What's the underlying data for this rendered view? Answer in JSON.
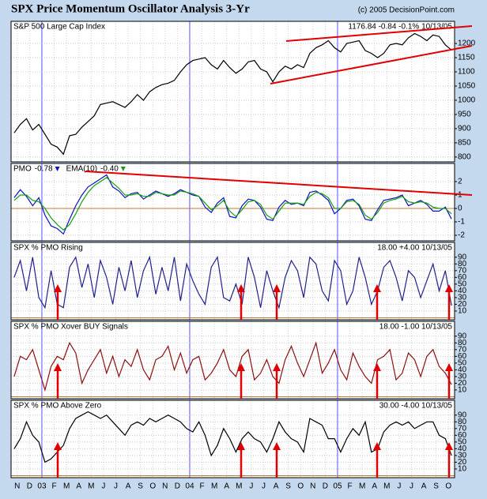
{
  "header": {
    "title": "SPX Price Momentum Oscillator Analysis 3-Yr",
    "copyright": "(c) 2005 DecisionPoint.com"
  },
  "chart_data": [
    {
      "type": "line",
      "title": "S&P 500 Large Cap Index",
      "annotation": "1176.84  -0.84  -0.1%  10/13/05",
      "ylim": [
        783,
        1278
      ],
      "yticks": [
        800,
        850,
        900,
        950,
        1000,
        1050,
        1100,
        1150,
        1200
      ],
      "grid": true,
      "series": [
        {
          "name": "SPX",
          "color": "#000000",
          "values": [
            885,
            915,
            935,
            895,
            915,
            880,
            845,
            835,
            810,
            875,
            880,
            905,
            925,
            945,
            985,
            990,
            995,
            985,
            975,
            995,
            1020,
            1000,
            1030,
            1045,
            1055,
            1060,
            1070,
            1100,
            1125,
            1140,
            1145,
            1150,
            1125,
            1110,
            1140,
            1115,
            1095,
            1110,
            1135,
            1140,
            1110,
            1100,
            1065,
            1100,
            1120,
            1110,
            1125,
            1115,
            1165,
            1185,
            1195,
            1210,
            1185,
            1170,
            1200,
            1205,
            1210,
            1175,
            1165,
            1150,
            1165,
            1195,
            1200,
            1195,
            1220,
            1235,
            1225,
            1210,
            1230,
            1225,
            1195,
            1176.84
          ]
        }
      ]
    },
    {
      "type": "line",
      "ylim": [
        -2.41,
        3.35
      ],
      "yticks": [
        2,
        1,
        0,
        -1,
        -2
      ],
      "grid": true,
      "series": [
        {
          "name": "PMO",
          "current": "-0.78",
          "color": "#1010c0",
          "values": [
            0.8,
            1.4,
            0.9,
            0.2,
            0.8,
            -0.5,
            -1.3,
            -1.5,
            -1.9,
            -0.8,
            0.2,
            1.0,
            1.6,
            1.9,
            2.2,
            2.5,
            1.6,
            1.3,
            0.8,
            1.1,
            1.2,
            0.7,
            1.0,
            1.3,
            1.1,
            0.9,
            1.1,
            1.4,
            1.2,
            1.0,
            0.9,
            0.1,
            -0.3,
            0.4,
            0.8,
            -0.6,
            -0.7,
            0.2,
            0.7,
            0.6,
            0.1,
            -0.8,
            -0.9,
            0.1,
            0.6,
            0.3,
            0.4,
            0.2,
            1.2,
            1.3,
            1.0,
            0.6,
            -0.4,
            0.0,
            0.6,
            0.7,
            0.2,
            -0.8,
            -0.9,
            -0.1,
            0.6,
            0.7,
            0.8,
            1.0,
            0.2,
            0.4,
            0.6,
            0.3,
            -0.2,
            -0.2,
            0.1,
            -0.78
          ]
        },
        {
          "name": "EMA(10)",
          "current": "-0.40",
          "color": "#10a010",
          "values": [
            0.6,
            1.0,
            1.0,
            0.6,
            0.5,
            0.0,
            -0.7,
            -1.2,
            -1.6,
            -1.2,
            -0.4,
            0.5,
            1.2,
            1.7,
            2.0,
            2.3,
            1.9,
            1.5,
            1.0,
            1.0,
            1.1,
            0.9,
            0.9,
            1.2,
            1.1,
            1.0,
            1.0,
            1.3,
            1.2,
            1.1,
            0.9,
            0.4,
            -0.1,
            0.2,
            0.6,
            -0.2,
            -0.6,
            -0.1,
            0.5,
            0.6,
            0.3,
            -0.5,
            -0.8,
            -0.2,
            0.4,
            0.4,
            0.4,
            0.3,
            0.9,
            1.2,
            1.1,
            0.8,
            0.0,
            0.0,
            0.5,
            0.6,
            0.3,
            -0.5,
            -0.8,
            -0.3,
            0.4,
            0.6,
            0.7,
            0.9,
            0.5,
            0.4,
            0.5,
            0.4,
            0.1,
            0.0,
            0.0,
            -0.4
          ]
        }
      ]
    },
    {
      "type": "line",
      "title": "SPX % PMO Rising",
      "annotation": "18.00  +4.00  10/13/05",
      "ylim": [
        -3,
        112
      ],
      "yticks": [
        90,
        80,
        70,
        60,
        50,
        40,
        30,
        20,
        10
      ],
      "grid": true,
      "series": [
        {
          "name": "% PMO Rising",
          "color": "#20208c",
          "values": [
            60,
            85,
            40,
            90,
            30,
            15,
            70,
            20,
            15,
            75,
            90,
            45,
            80,
            30,
            85,
            60,
            20,
            75,
            40,
            85,
            30,
            70,
            90,
            35,
            75,
            40,
            90,
            25,
            80,
            55,
            35,
            20,
            75,
            90,
            30,
            25,
            50,
            20,
            90,
            60,
            15,
            70,
            40,
            15,
            60,
            85,
            70,
            30,
            90,
            80,
            40,
            25,
            85,
            70,
            20,
            40,
            90,
            60,
            20,
            40,
            75,
            85,
            60,
            25,
            70,
            60,
            30,
            55,
            80,
            40,
            70,
            18
          ]
        }
      ]
    },
    {
      "type": "line",
      "title": "SPX % PMO Xover BUY Signals",
      "annotation": "18.00  -1.00  10/13/05",
      "ylim": [
        -3,
        112
      ],
      "yticks": [
        90,
        80,
        70,
        60,
        50,
        40,
        30,
        20,
        10
      ],
      "grid": true,
      "series": [
        {
          "name": "% PMO Xover BUY Signals",
          "color": "#8c1010",
          "values": [
            30,
            60,
            55,
            70,
            40,
            10,
            45,
            60,
            55,
            80,
            65,
            20,
            40,
            55,
            70,
            35,
            60,
            30,
            55,
            45,
            70,
            40,
            25,
            55,
            60,
            75,
            40,
            65,
            35,
            55,
            60,
            25,
            35,
            50,
            70,
            40,
            30,
            60,
            70,
            25,
            35,
            55,
            30,
            20,
            55,
            75,
            50,
            30,
            55,
            80,
            35,
            50,
            70,
            40,
            25,
            65,
            45,
            30,
            20,
            55,
            60,
            70,
            25,
            35,
            65,
            55,
            30,
            60,
            70,
            45,
            35,
            18
          ]
        }
      ]
    },
    {
      "type": "line",
      "title": "SPX % PMO Above Zero",
      "annotation": "30.00  -4.00  10/13/05",
      "ylim": [
        -3,
        112
      ],
      "yticks": [
        90,
        80,
        70,
        60,
        50,
        40,
        30,
        20,
        10
      ],
      "grid": true,
      "categories": [
        "N",
        null,
        "D",
        null,
        "03",
        null,
        "F",
        null,
        "M",
        null,
        "A",
        null,
        "M",
        null,
        "J",
        null,
        "J",
        null,
        "A",
        null,
        "S",
        null,
        "O",
        null,
        "N",
        null,
        "D",
        null,
        "04",
        null,
        "F",
        null,
        "M",
        null,
        "A",
        null,
        "M",
        null,
        "J",
        null,
        "J",
        null,
        "A",
        null,
        "S",
        null,
        "O",
        null,
        "N",
        null,
        "D",
        null,
        "05",
        null,
        "F",
        null,
        "M",
        null,
        "A",
        null,
        "M",
        null,
        "J",
        null,
        "J",
        null,
        "A",
        null,
        "S",
        null,
        "O",
        null
      ],
      "series": [
        {
          "name": "% PMO Above Zero",
          "color": "#000000",
          "values": [
            40,
            55,
            80,
            60,
            50,
            20,
            25,
            35,
            45,
            70,
            85,
            90,
            95,
            90,
            85,
            90,
            80,
            70,
            60,
            75,
            80,
            75,
            85,
            80,
            85,
            90,
            85,
            80,
            70,
            65,
            80,
            60,
            30,
            45,
            70,
            55,
            35,
            55,
            65,
            55,
            50,
            35,
            55,
            80,
            65,
            55,
            50,
            35,
            85,
            80,
            75,
            55,
            55,
            35,
            55,
            70,
            60,
            80,
            35,
            40,
            65,
            75,
            80,
            75,
            80,
            70,
            75,
            80,
            80,
            60,
            55,
            30
          ]
        }
      ]
    }
  ]
}
